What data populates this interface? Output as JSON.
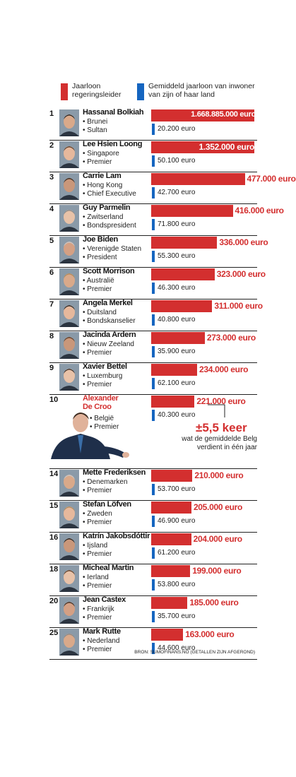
{
  "legend": {
    "leader_label": "Jaarloon regeringsleider",
    "citizen_label": "Gemiddeld jaarloon van inwoner van zijn of haar land",
    "leader_color": "#d32f2f",
    "citizen_color": "#1565c0"
  },
  "callout": {
    "factor": "±5,5 keer",
    "note": "wat de gemiddelde Belg verdient in één jaar"
  },
  "source": "BRON: SUMOFINANS.NO (GETALLEN ZIJN AFGEROND)",
  "chart_data": {
    "type": "bar",
    "orientation": "horizontal",
    "series": [
      {
        "name": "Jaarloon regeringsleider",
        "color": "#d32f2f"
      },
      {
        "name": "Gemiddeld jaarloon van inwoner van zijn of haar land",
        "color": "#1565c0"
      }
    ],
    "rows": [
      {
        "rank": "1",
        "name": "Hassanal Bolkiah",
        "country": "• Brunei",
        "role": "• Sultan",
        "salary": 1668885000,
        "salary_label": "1.668.885.000 euro",
        "avg": 20200,
        "avg_label": "20.200 euro",
        "label_inside": true
      },
      {
        "rank": "2",
        "name": "Lee Hsien Loong",
        "country": "• Singapore",
        "role": "• Premier",
        "salary": 1352000,
        "salary_label": "1.352.000 euro",
        "avg": 50100,
        "avg_label": "50.100 euro",
        "label_inside": true
      },
      {
        "rank": "3",
        "name": "Carrie Lam",
        "country": "• Hong Kong",
        "role": "• Chief Executive",
        "salary": 477000,
        "salary_label": "477.000 euro",
        "avg": 42700,
        "avg_label": "42.700 euro",
        "label_inside": false
      },
      {
        "rank": "4",
        "name": "Guy Parmelin",
        "country": "• Zwitserland",
        "role": "• Bondspresident",
        "salary": 416000,
        "salary_label": "416.000 euro",
        "avg": 71800,
        "avg_label": "71.800 euro",
        "label_inside": false
      },
      {
        "rank": "5",
        "name": "Joe Biden",
        "country": "• Verenigde Staten",
        "role": "• President",
        "salary": 336000,
        "salary_label": "336.000 euro",
        "avg": 55300,
        "avg_label": "55.300 euro",
        "label_inside": false
      },
      {
        "rank": "6",
        "name": "Scott Morrison",
        "country": "• Australië",
        "role": "• Premier",
        "salary": 323000,
        "salary_label": "323.000 euro",
        "avg": 46300,
        "avg_label": "46.300 euro",
        "label_inside": false
      },
      {
        "rank": "7",
        "name": "Angela Merkel",
        "country": "• Duitsland",
        "role": "• Bondskanselier",
        "salary": 311000,
        "salary_label": "311.000 euro",
        "avg": 40800,
        "avg_label": "40.800 euro",
        "label_inside": false
      },
      {
        "rank": "8",
        "name": "Jacinda Ardern",
        "country": "• Nieuw Zeeland",
        "role": "• Premier",
        "salary": 273000,
        "salary_label": "273.000 euro",
        "avg": 35900,
        "avg_label": "35.900 euro",
        "label_inside": false
      },
      {
        "rank": "9",
        "name": "Xavier Bettel",
        "country": "• Luxemburg",
        "role": "• Premier",
        "salary": 234000,
        "salary_label": "234.000 euro",
        "avg": 62100,
        "avg_label": "62.100 euro",
        "label_inside": false
      },
      {
        "rank": "10",
        "name": "Alexander De Croo",
        "name_line1": "Alexander",
        "name_line2": "De Croo",
        "country": "• België",
        "role": "• Premier",
        "salary": 221000,
        "salary_label": "221.000 euro",
        "avg": 40300,
        "avg_label": "40.300 euro",
        "label_inside": false,
        "highlight": true
      },
      {
        "rank": "14",
        "name": "Mette Frederiksen",
        "country": "• Denemarken",
        "role": "• Premier",
        "salary": 210000,
        "salary_label": "210.000 euro",
        "avg": 53700,
        "avg_label": "53.700 euro",
        "label_inside": false
      },
      {
        "rank": "15",
        "name": "Stefan Löfven",
        "country": "• Zweden",
        "role": "• Premier",
        "salary": 205000,
        "salary_label": "205.000 euro",
        "avg": 46900,
        "avg_label": "46.900 euro",
        "label_inside": false
      },
      {
        "rank": "16",
        "name": "Katrín Jakobsdóttir",
        "country": "• Ijsland",
        "role": "• Premier",
        "salary": 204000,
        "salary_label": "204.000 euro",
        "avg": 61200,
        "avg_label": "61.200 euro",
        "label_inside": false
      },
      {
        "rank": "18",
        "name": "Micheal Martin",
        "country": "• Ierland",
        "role": "• Premier",
        "salary": 199000,
        "salary_label": "199.000 euro",
        "avg": 53800,
        "avg_label": "53.800 euro",
        "label_inside": false
      },
      {
        "rank": "20",
        "name": "Jean Castex",
        "country": "• Frankrijk",
        "role": "• Premier",
        "salary": 185000,
        "salary_label": "185.000 euro",
        "avg": 35700,
        "avg_label": "35.700 euro",
        "label_inside": false
      },
      {
        "rank": "25",
        "name": "Mark Rutte",
        "country": "• Nederland",
        "role": "• Premier",
        "salary": 163000,
        "salary_label": "163.000 euro",
        "avg": 44600,
        "avg_label": "44.600 euro",
        "label_inside": false
      }
    ]
  }
}
